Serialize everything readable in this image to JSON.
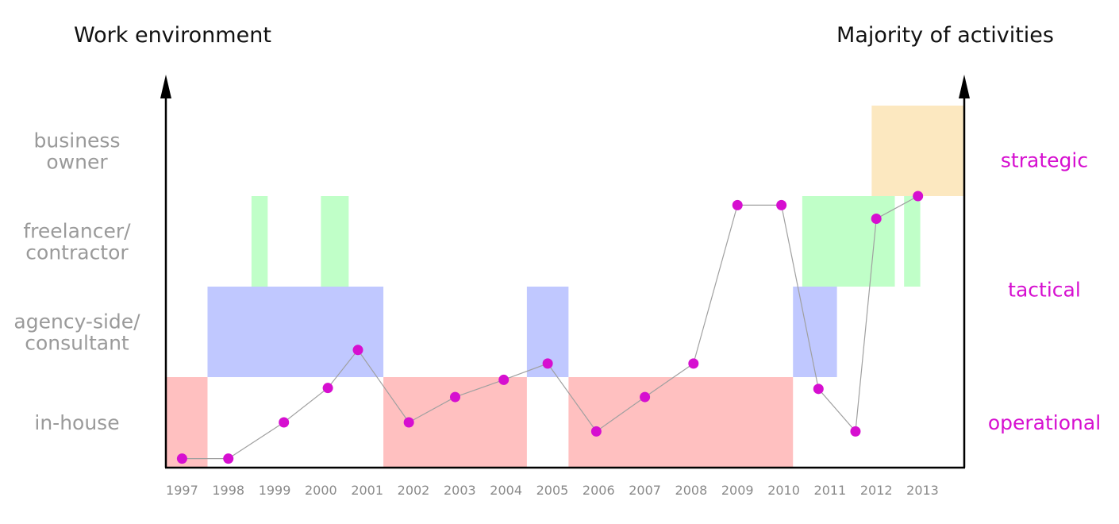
{
  "chart_data": {
    "type": "line",
    "title": "",
    "left_axis_title": "Work environment",
    "right_axis_title": "Majority of activities",
    "work_environment_categories": [
      [
        "in-house"
      ],
      [
        "agency-side/",
        "consultant"
      ],
      [
        "freelancer/",
        "contractor"
      ],
      [
        "business",
        "owner"
      ]
    ],
    "activity_levels": [
      "operational",
      "tactical",
      "strategic"
    ],
    "years": [
      "1997",
      "1998",
      "1999",
      "2000",
      "2001",
      "2002",
      "2003",
      "2004",
      "2005",
      "2006",
      "2007",
      "2008",
      "2009",
      "2010",
      "2011",
      "2012",
      "2013"
    ],
    "environment_periods": [
      {
        "category": "in-house",
        "start": 1996.7,
        "end": 1997.6
      },
      {
        "category": "in-house",
        "start": 2001.4,
        "end": 2004.5
      },
      {
        "category": "in-house",
        "start": 2005.4,
        "end": 2010.25
      },
      {
        "category": "agency-side/consultant",
        "start": 1997.6,
        "end": 2001.4
      },
      {
        "category": "agency-side/consultant",
        "start": 2004.5,
        "end": 2005.4
      },
      {
        "category": "agency-side/consultant",
        "start": 2010.25,
        "end": 2011.2
      },
      {
        "category": "freelancer/contractor",
        "start": 1998.55,
        "end": 1998.9
      },
      {
        "category": "freelancer/contractor",
        "start": 2000.05,
        "end": 2000.65
      },
      {
        "category": "freelancer/contractor",
        "start": 2010.45,
        "end": 2012.45
      },
      {
        "category": "freelancer/contractor",
        "start": 2012.65,
        "end": 2013.0
      },
      {
        "category": "business owner",
        "start": 2011.95,
        "end": 2013.95
      }
    ],
    "series": [
      {
        "x": [
          1997.05,
          1998.05,
          1999.25,
          2000.2,
          2000.85,
          2001.95,
          2002.95,
          2004.0,
          2004.95,
          2006.0,
          2007.05,
          2008.1,
          2009.05,
          2010.0,
          2010.8,
          2011.6,
          2012.05,
          2012.95
        ],
        "y": [
          0.1,
          0.1,
          0.5,
          0.88,
          1.3,
          0.5,
          0.78,
          0.97,
          1.15,
          0.4,
          0.78,
          1.15,
          2.9,
          2.9,
          0.87,
          0.4,
          2.75,
          3.0
        ]
      }
    ],
    "xlim": [
      1996.7,
      2013.95
    ],
    "ylim": [
      0,
      4
    ],
    "colors": {
      "in-house": "#ffc0c0",
      "agency-side/consultant": "#c0c8ff",
      "freelancer/contractor": "#c0ffc8",
      "business owner": "#fce8c0",
      "marker": "#d60fd0",
      "line": "#a0a0a0",
      "axis": "#000000"
    },
    "grid": false,
    "legend": "none"
  }
}
